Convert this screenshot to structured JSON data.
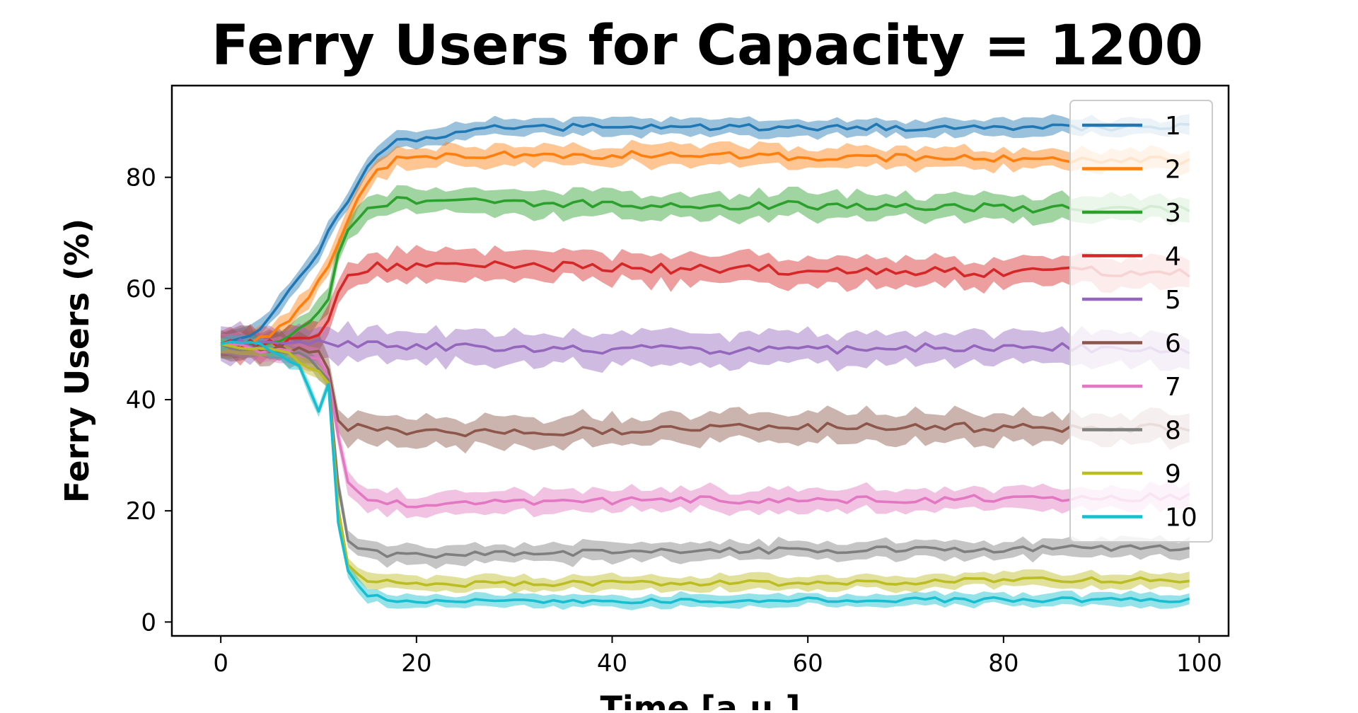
{
  "chart_data": {
    "type": "line",
    "title": "Ferry Users for Capacity = 1200",
    "xlabel": "Time [a.u.]",
    "ylabel": "Ferry Users (%)",
    "xlim": [
      -5,
      103
    ],
    "ylim": [
      -2.5,
      96.5
    ],
    "xticks": [
      0,
      20,
      40,
      60,
      80,
      100
    ],
    "yticks": [
      0,
      20,
      40,
      60,
      80
    ],
    "legend_position": "upper-right",
    "grid": false,
    "series": [
      {
        "name": "1",
        "color": "#1f77b4",
        "keyframes": [
          [
            0,
            50
          ],
          [
            2,
            51
          ],
          [
            4,
            53
          ],
          [
            6,
            57
          ],
          [
            8,
            62
          ],
          [
            10,
            67
          ],
          [
            12,
            73
          ],
          [
            14,
            79
          ],
          [
            16,
            84
          ],
          [
            18,
            87
          ],
          [
            20,
            87
          ],
          [
            24,
            88
          ],
          [
            28,
            89
          ],
          [
            35,
            89
          ],
          [
            50,
            89
          ],
          [
            70,
            89
          ],
          [
            99,
            89
          ]
        ],
        "final": 89,
        "band": 1.5,
        "noise": 0.6
      },
      {
        "name": "2",
        "color": "#ff7f0e",
        "keyframes": [
          [
            0,
            50
          ],
          [
            2,
            50
          ],
          [
            4,
            51
          ],
          [
            6,
            53
          ],
          [
            8,
            56
          ],
          [
            10,
            61
          ],
          [
            12,
            68
          ],
          [
            14,
            76
          ],
          [
            16,
            81
          ],
          [
            18,
            83
          ],
          [
            22,
            84
          ],
          [
            30,
            84
          ],
          [
            50,
            84
          ],
          [
            70,
            83.5
          ],
          [
            99,
            83
          ]
        ],
        "final": 83,
        "band": 1.8,
        "noise": 0.7
      },
      {
        "name": "3",
        "color": "#2ca02c",
        "keyframes": [
          [
            0,
            50
          ],
          [
            4,
            50
          ],
          [
            6,
            51
          ],
          [
            8,
            53
          ],
          [
            10,
            55
          ],
          [
            11,
            58
          ],
          [
            12,
            66
          ],
          [
            13,
            71
          ],
          [
            15,
            74
          ],
          [
            18,
            76
          ],
          [
            25,
            76
          ],
          [
            40,
            75
          ],
          [
            60,
            75
          ],
          [
            80,
            74.5
          ],
          [
            99,
            74
          ]
        ],
        "final": 74,
        "band": 2.2,
        "noise": 0.8
      },
      {
        "name": "4",
        "color": "#d62728",
        "keyframes": [
          [
            0,
            50
          ],
          [
            6,
            50
          ],
          [
            9,
            51
          ],
          [
            10,
            52
          ],
          [
            11,
            54
          ],
          [
            12,
            60
          ],
          [
            13,
            63
          ],
          [
            16,
            64
          ],
          [
            30,
            64
          ],
          [
            50,
            63.5
          ],
          [
            70,
            63
          ],
          [
            99,
            63
          ]
        ],
        "final": 63,
        "band": 2.6,
        "noise": 0.9
      },
      {
        "name": "5",
        "color": "#9467bd",
        "keyframes": [
          [
            0,
            50
          ],
          [
            10,
            50
          ],
          [
            20,
            49.5
          ],
          [
            40,
            49
          ],
          [
            60,
            49
          ],
          [
            80,
            49.5
          ],
          [
            99,
            49
          ]
        ],
        "final": 49,
        "band": 2.8,
        "noise": 0.8
      },
      {
        "name": "6",
        "color": "#8c564b",
        "keyframes": [
          [
            0,
            50
          ],
          [
            8,
            49
          ],
          [
            10,
            48
          ],
          [
            11,
            46
          ],
          [
            12,
            37
          ],
          [
            13,
            35
          ],
          [
            18,
            34
          ],
          [
            30,
            34
          ],
          [
            50,
            35
          ],
          [
            70,
            35
          ],
          [
            99,
            35
          ]
        ],
        "final": 35,
        "band": 2.6,
        "noise": 0.8
      },
      {
        "name": "7",
        "color": "#e377c2",
        "keyframes": [
          [
            0,
            50
          ],
          [
            8,
            48
          ],
          [
            10,
            47
          ],
          [
            11,
            44
          ],
          [
            12,
            33
          ],
          [
            13,
            25
          ],
          [
            15,
            22
          ],
          [
            20,
            21
          ],
          [
            30,
            21.5
          ],
          [
            50,
            22
          ],
          [
            70,
            22
          ],
          [
            99,
            22.5
          ]
        ],
        "final": 22.5,
        "band": 2.0,
        "noise": 0.7
      },
      {
        "name": "8",
        "color": "#7f7f7f",
        "keyframes": [
          [
            0,
            50
          ],
          [
            8,
            48
          ],
          [
            10,
            46
          ],
          [
            11,
            43
          ],
          [
            12,
            25
          ],
          [
            13,
            15
          ],
          [
            15,
            12.5
          ],
          [
            20,
            12
          ],
          [
            40,
            12.5
          ],
          [
            60,
            13
          ],
          [
            80,
            13
          ],
          [
            99,
            13.5
          ]
        ],
        "final": 13.5,
        "band": 1.6,
        "noise": 0.6
      },
      {
        "name": "9",
        "color": "#bcbd22",
        "keyframes": [
          [
            0,
            50
          ],
          [
            6,
            49
          ],
          [
            8,
            47
          ],
          [
            10,
            45
          ],
          [
            11,
            43
          ],
          [
            12,
            20
          ],
          [
            13,
            10
          ],
          [
            15,
            7.5
          ],
          [
            20,
            6.8
          ],
          [
            40,
            7
          ],
          [
            60,
            7
          ],
          [
            80,
            7.5
          ],
          [
            99,
            7.5
          ]
        ],
        "final": 7.5,
        "band": 1.3,
        "noise": 0.5
      },
      {
        "name": "10",
        "color": "#17becf",
        "keyframes": [
          [
            0,
            50
          ],
          [
            4,
            50
          ],
          [
            6,
            48
          ],
          [
            8,
            46
          ],
          [
            10,
            38
          ],
          [
            11,
            43
          ],
          [
            12,
            18
          ],
          [
            13,
            9
          ],
          [
            15,
            5
          ],
          [
            17,
            4
          ],
          [
            25,
            3.8
          ],
          [
            40,
            3.8
          ],
          [
            60,
            4
          ],
          [
            80,
            4
          ],
          [
            99,
            4
          ]
        ],
        "final": 4,
        "band": 1.1,
        "noise": 0.45
      }
    ]
  }
}
